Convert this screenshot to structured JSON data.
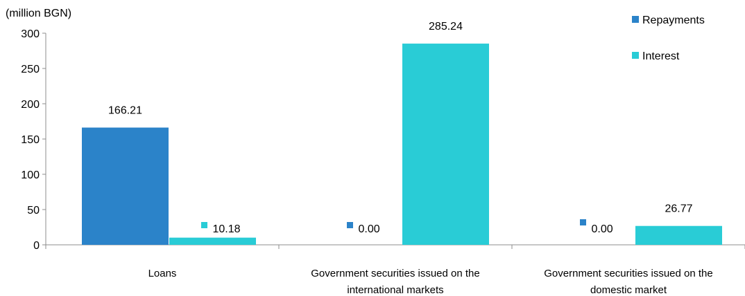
{
  "chart_data": {
    "type": "bar",
    "unit_label": "(million BGN)",
    "categories": [
      [
        "Loans"
      ],
      [
        "Government securities issued on the",
        "international markets"
      ],
      [
        "Government securities issued on the",
        "domestic market"
      ]
    ],
    "series": [
      {
        "name": "Repayments",
        "color": "#2b83c9",
        "values": [
          166.21,
          0.0,
          0.0
        ],
        "labels": [
          "166.21",
          "0.00",
          "0.00"
        ]
      },
      {
        "name": "Interest",
        "color": "#29ccd6",
        "values": [
          10.18,
          285.24,
          26.77
        ],
        "labels": [
          "10.18",
          "285.24",
          "26.77"
        ]
      }
    ],
    "y_ticks": [
      "0",
      "50",
      "100",
      "150",
      "200",
      "250",
      "300"
    ],
    "ylim": [
      0,
      300
    ],
    "grid": false,
    "legend_position": "top-right"
  }
}
